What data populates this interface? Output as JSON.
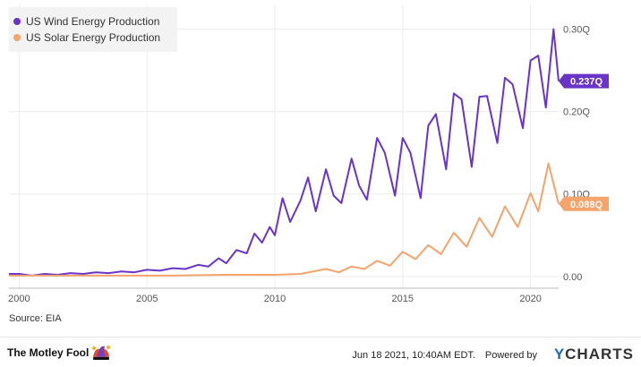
{
  "chart_data": {
    "type": "line",
    "x_range": [
      1999.6,
      2021.1
    ],
    "ylim": [
      -0.01,
      0.33
    ],
    "x_ticks": [
      {
        "value": 2000,
        "label": "2000"
      },
      {
        "value": 2005,
        "label": "2005"
      },
      {
        "value": 2010,
        "label": "2010"
      },
      {
        "value": 2015,
        "label": "2015"
      },
      {
        "value": 2020,
        "label": "2020"
      }
    ],
    "y_ticks": [
      {
        "value": 0.0,
        "label": "0.00"
      },
      {
        "value": 0.1,
        "label": "0.10Q"
      },
      {
        "value": 0.2,
        "label": "0.20Q"
      },
      {
        "value": 0.3,
        "label": "0.30Q"
      }
    ],
    "grid": true,
    "legend_position": "top-left",
    "series": [
      {
        "name": "US Wind Energy Production",
        "color": "#6a34c8",
        "last_label": "0.237Q",
        "points": [
          [
            1999.6,
            0.003
          ],
          [
            2000.0,
            0.003
          ],
          [
            2000.5,
            0.001
          ],
          [
            2001.0,
            0.003
          ],
          [
            2001.5,
            0.002
          ],
          [
            2002.0,
            0.004
          ],
          [
            2002.5,
            0.003
          ],
          [
            2003.0,
            0.005
          ],
          [
            2003.5,
            0.004
          ],
          [
            2004.0,
            0.006
          ],
          [
            2004.5,
            0.005
          ],
          [
            2005.0,
            0.008
          ],
          [
            2005.5,
            0.007
          ],
          [
            2006.0,
            0.01
          ],
          [
            2006.5,
            0.009
          ],
          [
            2007.0,
            0.014
          ],
          [
            2007.4,
            0.012
          ],
          [
            2007.8,
            0.022
          ],
          [
            2008.1,
            0.016
          ],
          [
            2008.5,
            0.032
          ],
          [
            2008.9,
            0.028
          ],
          [
            2009.2,
            0.052
          ],
          [
            2009.5,
            0.041
          ],
          [
            2009.8,
            0.06
          ],
          [
            2010.0,
            0.05
          ],
          [
            2010.3,
            0.095
          ],
          [
            2010.6,
            0.066
          ],
          [
            2011.0,
            0.092
          ],
          [
            2011.3,
            0.12
          ],
          [
            2011.6,
            0.079
          ],
          [
            2012.0,
            0.13
          ],
          [
            2012.3,
            0.098
          ],
          [
            2012.6,
            0.089
          ],
          [
            2013.0,
            0.143
          ],
          [
            2013.3,
            0.11
          ],
          [
            2013.6,
            0.093
          ],
          [
            2014.0,
            0.168
          ],
          [
            2014.3,
            0.15
          ],
          [
            2014.7,
            0.098
          ],
          [
            2015.0,
            0.168
          ],
          [
            2015.3,
            0.15
          ],
          [
            2015.7,
            0.095
          ],
          [
            2016.0,
            0.183
          ],
          [
            2016.3,
            0.197
          ],
          [
            2016.7,
            0.13
          ],
          [
            2017.0,
            0.222
          ],
          [
            2017.3,
            0.215
          ],
          [
            2017.7,
            0.133
          ],
          [
            2018.0,
            0.218
          ],
          [
            2018.3,
            0.219
          ],
          [
            2018.7,
            0.162
          ],
          [
            2019.0,
            0.241
          ],
          [
            2019.3,
            0.233
          ],
          [
            2019.7,
            0.18
          ],
          [
            2020.0,
            0.262
          ],
          [
            2020.3,
            0.268
          ],
          [
            2020.6,
            0.205
          ],
          [
            2020.9,
            0.3
          ],
          [
            2021.1,
            0.237
          ]
        ]
      },
      {
        "name": "US Solar Energy Production",
        "color": "#f5a46b",
        "last_label": "0.088Q",
        "points": [
          [
            1999.6,
            0.001
          ],
          [
            2002.0,
            0.001
          ],
          [
            2004.0,
            0.001
          ],
          [
            2006.0,
            0.001
          ],
          [
            2008.0,
            0.002
          ],
          [
            2009.0,
            0.002
          ],
          [
            2010.0,
            0.002
          ],
          [
            2011.0,
            0.003
          ],
          [
            2012.0,
            0.009
          ],
          [
            2012.5,
            0.005
          ],
          [
            2013.0,
            0.012
          ],
          [
            2013.5,
            0.009
          ],
          [
            2014.0,
            0.019
          ],
          [
            2014.5,
            0.013
          ],
          [
            2015.0,
            0.03
          ],
          [
            2015.5,
            0.021
          ],
          [
            2016.0,
            0.038
          ],
          [
            2016.5,
            0.027
          ],
          [
            2017.0,
            0.053
          ],
          [
            2017.5,
            0.036
          ],
          [
            2018.0,
            0.071
          ],
          [
            2018.5,
            0.048
          ],
          [
            2019.0,
            0.085
          ],
          [
            2019.5,
            0.06
          ],
          [
            2020.0,
            0.101
          ],
          [
            2020.3,
            0.079
          ],
          [
            2020.7,
            0.137
          ],
          [
            2021.1,
            0.088
          ]
        ]
      }
    ]
  },
  "source_text": "Source: EIA",
  "brand_text": "The Motley Fool",
  "timestamp_text": "Jun 18 2021, 10:40AM EDT.",
  "powered_text": "Powered by",
  "ycharts_y": "Y",
  "ycharts_rest": "CHARTS"
}
